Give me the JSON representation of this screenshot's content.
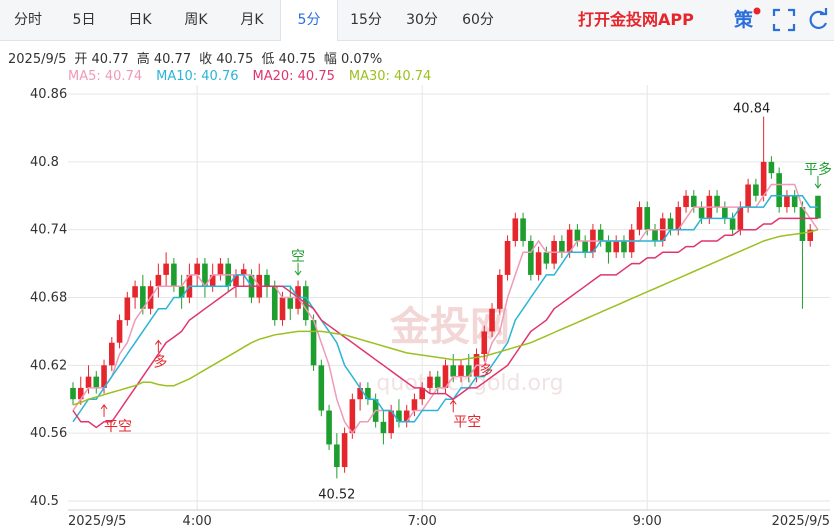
{
  "tabs": [
    "分时",
    "5日",
    "日K",
    "周K",
    "月K",
    "5分",
    "15分",
    "30分",
    "60分"
  ],
  "active_tab": 5,
  "brand": "打开金投网APP",
  "strategy_icon": "策",
  "info": {
    "date": "2025/9/5",
    "items": [
      "开 40.77",
      "高 40.77",
      "收 40.75",
      "低 40.75",
      "幅 0.07%"
    ]
  },
  "chart_data": {
    "type": "candlestick",
    "up_color": "#e5262c",
    "down_color": "#1e9e2e",
    "ylim": [
      40.492,
      40.868
    ],
    "yticks": [
      40.86,
      40.8,
      40.74,
      40.68,
      40.62,
      40.56,
      40.5
    ],
    "grid": true,
    "xticks": [
      {
        "value": 0,
        "label": "2025/9/5"
      },
      {
        "value": 16,
        "label": "4:00"
      },
      {
        "value": 45,
        "label": "7:00"
      },
      {
        "value": 74,
        "label": "9:00"
      },
      {
        "value": 96,
        "label": "2025/9/5"
      }
    ],
    "watermark": "金投网",
    "watermark_sub": "quote.cngold.org",
    "extremes": {
      "high": 40.84,
      "high_index": 89,
      "low": 40.52,
      "low_index": 34
    },
    "signals": [
      {
        "text": "平空",
        "index": 4,
        "price": 40.585,
        "dir": "up"
      },
      {
        "text": "多",
        "index": 11,
        "price": 40.642,
        "dir": "up"
      },
      {
        "text": "空",
        "index": 29,
        "price": 40.7,
        "dir": "down"
      },
      {
        "text": "平空",
        "index": 49,
        "price": 40.589,
        "dir": "up"
      },
      {
        "text": "多",
        "index": 53,
        "price": 40.634,
        "dir": "up"
      },
      {
        "text": "平多",
        "index": 96,
        "price": 40.777,
        "dir": "down"
      }
    ],
    "candles": [
      [
        40.6,
        40.605,
        40.585,
        40.59
      ],
      [
        40.59,
        40.61,
        40.585,
        40.6
      ],
      [
        40.6,
        40.62,
        40.595,
        40.61
      ],
      [
        40.61,
        40.615,
        40.595,
        40.6
      ],
      [
        40.6,
        40.625,
        40.595,
        40.62
      ],
      [
        40.62,
        40.645,
        40.615,
        40.64
      ],
      [
        40.64,
        40.665,
        40.635,
        40.66
      ],
      [
        40.66,
        40.685,
        40.655,
        40.68
      ],
      [
        40.68,
        40.695,
        40.67,
        40.69
      ],
      [
        40.69,
        40.7,
        40.665,
        40.67
      ],
      [
        40.67,
        40.695,
        40.665,
        40.69
      ],
      [
        40.69,
        40.71,
        40.68,
        40.7
      ],
      [
        40.7,
        40.72,
        40.69,
        40.71
      ],
      [
        40.71,
        40.715,
        40.685,
        40.69
      ],
      [
        40.69,
        40.7,
        40.67,
        40.68
      ],
      [
        40.68,
        40.71,
        40.675,
        40.7
      ],
      [
        40.7,
        40.715,
        40.69,
        40.71
      ],
      [
        40.71,
        40.715,
        40.68,
        40.69
      ],
      [
        40.69,
        40.71,
        40.685,
        40.7
      ],
      [
        40.7,
        40.715,
        40.695,
        40.71
      ],
      [
        40.71,
        40.715,
        40.685,
        40.69
      ],
      [
        40.69,
        40.705,
        40.68,
        40.7
      ],
      [
        40.7,
        40.71,
        40.69,
        40.705
      ],
      [
        40.7,
        40.705,
        40.675,
        40.68
      ],
      [
        40.68,
        40.71,
        40.675,
        40.7
      ],
      [
        40.7,
        40.705,
        40.68,
        40.69
      ],
      [
        40.69,
        40.695,
        40.655,
        40.66
      ],
      [
        40.66,
        40.685,
        40.655,
        40.68
      ],
      [
        40.68,
        40.69,
        40.66,
        40.67
      ],
      [
        40.67,
        40.695,
        40.665,
        40.69
      ],
      [
        40.69,
        40.695,
        40.655,
        40.66
      ],
      [
        40.66,
        40.665,
        40.615,
        40.62
      ],
      [
        40.62,
        40.625,
        40.575,
        40.58
      ],
      [
        40.58,
        40.585,
        40.545,
        40.55
      ],
      [
        40.55,
        40.56,
        40.52,
        40.53
      ],
      [
        40.53,
        40.565,
        40.525,
        40.56
      ],
      [
        40.56,
        40.595,
        40.555,
        40.59
      ],
      [
        40.59,
        40.605,
        40.58,
        40.6
      ],
      [
        40.6,
        40.605,
        40.585,
        40.59
      ],
      [
        40.59,
        40.595,
        40.565,
        40.57
      ],
      [
        40.57,
        40.58,
        40.55,
        40.56
      ],
      [
        40.56,
        40.585,
        40.555,
        40.58
      ],
      [
        40.58,
        40.59,
        40.565,
        40.57
      ],
      [
        40.57,
        40.585,
        40.565,
        40.58
      ],
      [
        40.58,
        40.595,
        40.575,
        40.59
      ],
      [
        40.59,
        40.605,
        40.585,
        40.6
      ],
      [
        40.6,
        40.615,
        40.595,
        40.61
      ],
      [
        40.61,
        40.615,
        40.595,
        40.6
      ],
      [
        40.6,
        40.625,
        40.595,
        40.62
      ],
      [
        40.62,
        40.63,
        40.605,
        40.61
      ],
      [
        40.61,
        40.625,
        40.605,
        40.62
      ],
      [
        40.62,
        40.63,
        40.605,
        40.61
      ],
      [
        40.61,
        40.635,
        40.605,
        40.63
      ],
      [
        40.63,
        40.655,
        40.625,
        40.65
      ],
      [
        40.65,
        40.675,
        40.645,
        40.67
      ],
      [
        40.67,
        40.705,
        40.665,
        40.7
      ],
      [
        40.7,
        40.735,
        40.695,
        40.73
      ],
      [
        40.73,
        40.755,
        40.725,
        40.75
      ],
      [
        40.75,
        40.755,
        40.725,
        40.73
      ],
      [
        40.73,
        40.735,
        40.695,
        40.7
      ],
      [
        40.7,
        40.725,
        40.695,
        40.72
      ],
      [
        40.72,
        40.725,
        40.705,
        40.71
      ],
      [
        40.71,
        40.735,
        40.705,
        40.73
      ],
      [
        40.73,
        40.735,
        40.715,
        40.72
      ],
      [
        40.72,
        40.745,
        40.715,
        40.74
      ],
      [
        40.74,
        40.745,
        40.725,
        40.73
      ],
      [
        40.73,
        40.735,
        40.715,
        40.72
      ],
      [
        40.72,
        40.745,
        40.715,
        40.74
      ],
      [
        40.74,
        40.745,
        40.725,
        40.73
      ],
      [
        40.73,
        40.735,
        40.71,
        40.72
      ],
      [
        40.72,
        40.735,
        40.715,
        40.73
      ],
      [
        40.73,
        40.735,
        40.715,
        40.72
      ],
      [
        40.72,
        40.745,
        40.715,
        40.74
      ],
      [
        40.74,
        40.765,
        40.735,
        40.76
      ],
      [
        40.76,
        40.765,
        40.735,
        40.74
      ],
      [
        40.74,
        40.745,
        40.725,
        40.73
      ],
      [
        40.73,
        40.755,
        40.725,
        40.75
      ],
      [
        40.75,
        40.755,
        40.735,
        40.74
      ],
      [
        40.74,
        40.765,
        40.735,
        40.76
      ],
      [
        40.76,
        40.775,
        40.755,
        40.77
      ],
      [
        40.77,
        40.775,
        40.755,
        40.76
      ],
      [
        40.76,
        40.765,
        40.745,
        40.75
      ],
      [
        40.75,
        40.775,
        40.745,
        40.77
      ],
      [
        40.77,
        40.775,
        40.755,
        40.76
      ],
      [
        40.76,
        40.765,
        40.745,
        40.75
      ],
      [
        40.75,
        40.755,
        40.735,
        40.74
      ],
      [
        40.74,
        40.765,
        40.735,
        40.76
      ],
      [
        40.76,
        40.785,
        40.755,
        40.78
      ],
      [
        40.78,
        40.785,
        40.765,
        40.77
      ],
      [
        40.77,
        40.84,
        40.765,
        40.8
      ],
      [
        40.8,
        40.805,
        40.785,
        40.79
      ],
      [
        40.79,
        40.795,
        40.755,
        40.76
      ],
      [
        40.76,
        40.775,
        40.755,
        40.77
      ],
      [
        40.77,
        40.775,
        40.755,
        40.76
      ],
      [
        40.76,
        40.765,
        40.67,
        40.73
      ],
      [
        40.73,
        40.745,
        40.725,
        40.74
      ],
      [
        40.77,
        40.77,
        40.75,
        40.75
      ]
    ],
    "series": [
      {
        "name": "MA5",
        "legend_label": "MA5: 40.74",
        "color": "#f09ab8",
        "values": [
          40.58,
          40.59,
          40.6,
          40.6,
          40.6,
          40.61,
          40.63,
          40.64,
          40.66,
          40.67,
          40.68,
          40.69,
          40.69,
          40.69,
          40.69,
          40.7,
          40.7,
          40.69,
          40.7,
          40.7,
          40.7,
          40.7,
          40.7,
          40.7,
          40.69,
          40.69,
          40.69,
          40.68,
          40.68,
          40.68,
          40.67,
          40.66,
          40.64,
          40.62,
          40.59,
          40.57,
          40.56,
          40.57,
          40.57,
          40.58,
          40.58,
          40.58,
          40.57,
          40.57,
          40.58,
          40.58,
          40.59,
          40.6,
          40.6,
          40.61,
          40.61,
          40.61,
          40.62,
          40.62,
          40.64,
          40.65,
          40.68,
          40.7,
          40.72,
          40.72,
          40.73,
          40.72,
          40.72,
          40.72,
          40.72,
          40.73,
          40.73,
          40.73,
          40.73,
          40.73,
          40.73,
          40.73,
          40.73,
          40.73,
          40.74,
          40.74,
          40.74,
          40.74,
          40.74,
          40.75,
          40.76,
          40.76,
          40.76,
          40.76,
          40.76,
          40.76,
          40.76,
          40.76,
          40.76,
          40.77,
          40.78,
          40.78,
          40.78,
          40.78,
          40.76,
          40.75,
          40.74
        ]
      },
      {
        "name": "MA10",
        "legend_label": "MA10: 40.76",
        "color": "#2ab4d8",
        "values": [
          40.57,
          40.58,
          40.59,
          40.59,
          40.6,
          40.61,
          40.62,
          40.63,
          40.64,
          40.65,
          40.66,
          40.67,
          40.67,
          40.68,
          40.68,
          40.69,
          40.69,
          40.69,
          40.69,
          40.69,
          40.69,
          40.7,
          40.7,
          40.69,
          40.69,
          40.69,
          40.69,
          40.69,
          40.69,
          40.68,
          40.68,
          40.67,
          40.66,
          40.65,
          40.64,
          40.62,
          40.61,
          40.6,
          40.59,
          40.59,
          40.58,
          40.58,
          40.57,
          40.57,
          40.57,
          40.58,
          40.58,
          40.58,
          40.59,
          40.59,
          40.6,
          40.6,
          40.61,
          40.61,
          40.62,
          40.63,
          40.64,
          40.66,
          40.67,
          40.68,
          40.69,
          40.7,
          40.7,
          40.71,
          40.72,
          40.72,
          40.72,
          40.72,
          40.73,
          40.73,
          40.73,
          40.73,
          40.73,
          40.73,
          40.73,
          40.73,
          40.73,
          40.74,
          40.74,
          40.74,
          40.74,
          40.75,
          40.75,
          40.75,
          40.75,
          40.75,
          40.76,
          40.76,
          40.76,
          40.76,
          40.77,
          40.77,
          40.77,
          40.77,
          40.77,
          40.76,
          40.76
        ]
      },
      {
        "name": "MA20",
        "legend_label": "MA20: 40.75",
        "color": "#e0356e",
        "values": [
          40.58,
          40.57,
          40.57,
          40.565,
          40.57,
          40.57,
          40.58,
          40.59,
          40.6,
          40.61,
          40.62,
          40.63,
          40.64,
          40.645,
          40.65,
          40.66,
          40.665,
          40.67,
          40.675,
          40.68,
          40.685,
          40.69,
          40.69,
          40.69,
          40.69,
          40.69,
          40.69,
          40.69,
          40.685,
          40.68,
          40.675,
          40.67,
          40.66,
          40.655,
          40.65,
          40.645,
          40.64,
          40.635,
          40.63,
          40.625,
          40.62,
          40.615,
          40.61,
          40.605,
          40.6,
          40.6,
          40.595,
          40.595,
          40.595,
          40.59,
          40.595,
          40.6,
          40.6,
          40.605,
          40.61,
          40.615,
          40.62,
          40.63,
          40.64,
          40.65,
          40.655,
          40.66,
          40.67,
          40.675,
          40.68,
          40.685,
          40.69,
          40.695,
          40.7,
          40.7,
          40.7,
          40.705,
          40.71,
          40.71,
          40.715,
          40.715,
          40.72,
          40.72,
          40.72,
          40.725,
          40.725,
          40.73,
          40.73,
          40.73,
          40.735,
          40.735,
          40.74,
          40.74,
          40.74,
          40.745,
          40.745,
          40.75,
          40.75,
          40.75,
          40.75,
          40.75,
          40.75
        ]
      },
      {
        "name": "MA30",
        "legend_label": "MA30: 40.74",
        "color": "#9cc020",
        "values": [
          40.585,
          40.587,
          40.59,
          40.592,
          40.594,
          40.596,
          40.598,
          40.6,
          40.602,
          40.605,
          40.605,
          40.603,
          40.602,
          40.602,
          40.605,
          40.608,
          40.612,
          40.616,
          40.62,
          40.624,
          40.628,
          40.632,
          40.636,
          40.64,
          40.643,
          40.645,
          40.647,
          40.648,
          40.649,
          40.65,
          40.65,
          40.65,
          40.65,
          40.649,
          40.648,
          40.647,
          40.645,
          40.643,
          40.641,
          40.639,
          40.637,
          40.635,
          40.633,
          40.631,
          40.63,
          40.629,
          40.628,
          40.627,
          40.626,
          40.625,
          40.625,
          40.626,
          40.627,
          40.628,
          40.63,
          40.632,
          40.634,
          40.636,
          40.638,
          40.64,
          40.643,
          40.646,
          40.649,
          40.652,
          40.655,
          40.658,
          40.661,
          40.664,
          40.667,
          40.67,
          40.673,
          40.676,
          40.679,
          40.682,
          40.685,
          40.688,
          40.691,
          40.694,
          40.697,
          40.7,
          40.703,
          40.706,
          40.709,
          40.712,
          40.715,
          40.718,
          40.721,
          40.724,
          40.727,
          40.73,
          40.732,
          40.734,
          40.735,
          40.736,
          40.737,
          40.738,
          40.74
        ]
      }
    ]
  }
}
